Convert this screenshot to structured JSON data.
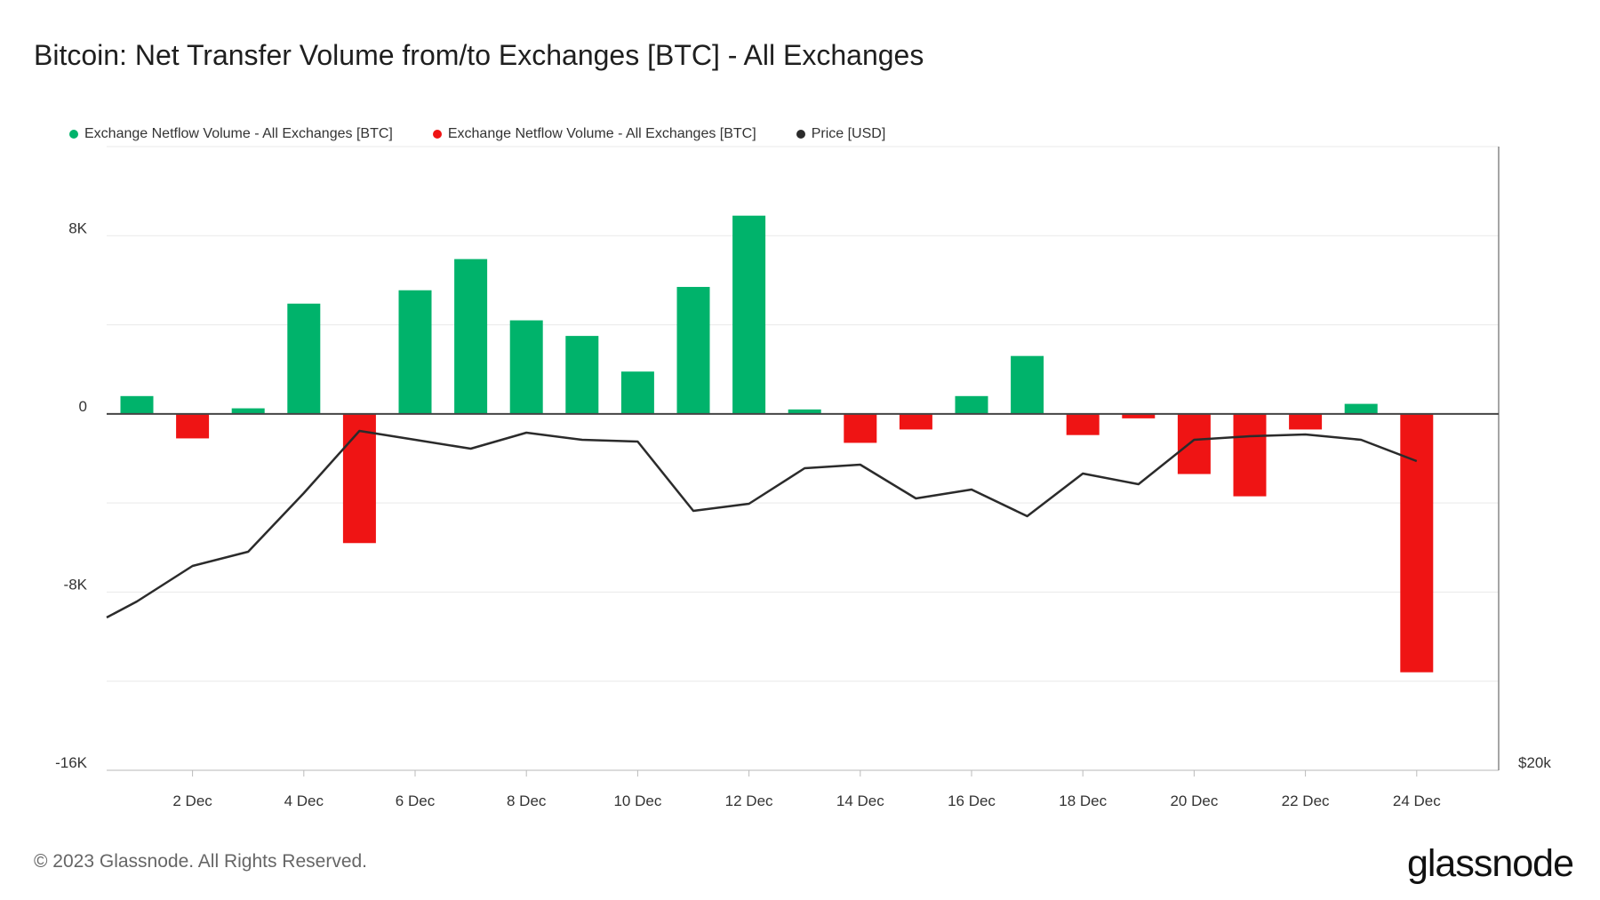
{
  "title": "Bitcoin: Net Transfer Volume from/to Exchanges [BTC] - All Exchanges",
  "footer": {
    "copyright": "© 2023 Glassnode. All Rights Reserved.",
    "brand": "glassnode"
  },
  "colors": {
    "inflow": "#00b36b",
    "outflow": "#ef1414",
    "price": "#2b2b2b",
    "grid": "#e9e9e9",
    "axis": "#888888"
  },
  "chart_data": {
    "type": "bar",
    "title": "Bitcoin: Net Transfer Volume from/to Exchanges [BTC] - All Exchanges",
    "legend": [
      {
        "label": "Exchange Netflow Volume - All Exchanges [BTC]",
        "color": "#00b36b"
      },
      {
        "label": "Exchange Netflow Volume - All Exchanges [BTC]",
        "color": "#ef1414"
      },
      {
        "label": "Price [USD]",
        "color": "#2b2b2b"
      }
    ],
    "legend_position": "top-left",
    "grid": true,
    "ylim": [
      -16000,
      12000
    ],
    "y_ticks": [
      {
        "value": 8000,
        "label": "8K"
      },
      {
        "value": 0,
        "label": "0"
      },
      {
        "value": -8000,
        "label": "-8K"
      },
      {
        "value": -16000,
        "label": "-16K"
      }
    ],
    "y2_label": "$20k",
    "x_ticks": [
      "2 Dec",
      "4 Dec",
      "6 Dec",
      "8 Dec",
      "10 Dec",
      "12 Dec",
      "14 Dec",
      "16 Dec",
      "18 Dec",
      "20 Dec",
      "22 Dec",
      "24 Dec"
    ],
    "x": [
      "1 Dec",
      "2 Dec",
      "3 Dec",
      "4 Dec",
      "5 Dec",
      "6 Dec",
      "7 Dec",
      "8 Dec",
      "9 Dec",
      "10 Dec",
      "11 Dec",
      "12 Dec",
      "13 Dec",
      "14 Dec",
      "15 Dec",
      "16 Dec",
      "17 Dec",
      "18 Dec",
      "19 Dec",
      "20 Dec",
      "21 Dec",
      "22 Dec",
      "23 Dec",
      "24 Dec"
    ],
    "series": [
      {
        "name": "Exchange Netflow Volume - All Exchanges [BTC]",
        "values": [
          800,
          -1100,
          250,
          4950,
          -5800,
          5550,
          6950,
          4200,
          3500,
          1900,
          5700,
          8900,
          200,
          -1300,
          -700,
          800,
          2600,
          -950,
          -200,
          -2700,
          -3700,
          -700,
          450,
          -11600
        ]
      },
      {
        "name": "Price [USD]",
        "values": [
          16890,
          17090,
          17170,
          17500,
          17850,
          17800,
          17750,
          17840,
          17800,
          17790,
          17400,
          17440,
          17640,
          17660,
          17470,
          17520,
          17370,
          17610,
          17550,
          17800,
          17820,
          17830,
          17800,
          17680
        ]
      }
    ]
  }
}
